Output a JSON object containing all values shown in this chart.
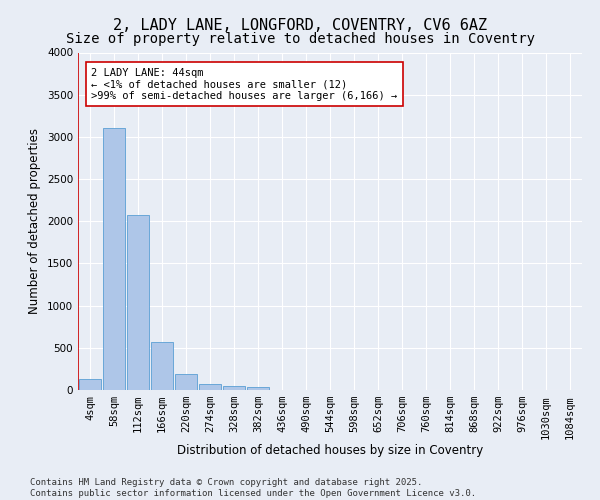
{
  "title_line1": "2, LADY LANE, LONGFORD, COVENTRY, CV6 6AZ",
  "title_line2": "Size of property relative to detached houses in Coventry",
  "xlabel": "Distribution of detached houses by size in Coventry",
  "ylabel": "Number of detached properties",
  "bar_color": "#aec6e8",
  "bar_edge_color": "#5a9fd4",
  "background_color": "#e8edf5",
  "grid_color": "#ffffff",
  "annotation_line_color": "#cc0000",
  "annotation_box_color": "#cc0000",
  "annotation_text": "2 LADY LANE: 44sqm\n← <1% of detached houses are smaller (12)\n>99% of semi-detached houses are larger (6,166) →",
  "categories": [
    "4sqm",
    "58sqm",
    "112sqm",
    "166sqm",
    "220sqm",
    "274sqm",
    "328sqm",
    "382sqm",
    "436sqm",
    "490sqm",
    "544sqm",
    "598sqm",
    "652sqm",
    "706sqm",
    "760sqm",
    "814sqm",
    "868sqm",
    "922sqm",
    "976sqm",
    "1030sqm",
    "1084sqm"
  ],
  "values": [
    130,
    3100,
    2080,
    570,
    195,
    75,
    50,
    40,
    0,
    0,
    0,
    0,
    0,
    0,
    0,
    0,
    0,
    0,
    0,
    0,
    0
  ],
  "ylim": [
    0,
    4000
  ],
  "yticks": [
    0,
    500,
    1000,
    1500,
    2000,
    2500,
    3000,
    3500,
    4000
  ],
  "footer": "Contains HM Land Registry data © Crown copyright and database right 2025.\nContains public sector information licensed under the Open Government Licence v3.0.",
  "title_fontsize": 11,
  "subtitle_fontsize": 10,
  "axis_label_fontsize": 8.5,
  "tick_fontsize": 7.5,
  "annotation_fontsize": 7.5,
  "footer_fontsize": 6.5
}
